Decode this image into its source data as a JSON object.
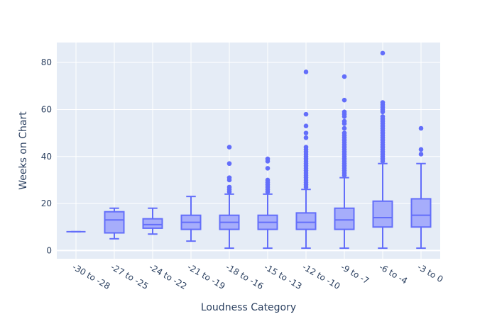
{
  "chart_data": {
    "type": "box",
    "title": "",
    "xlabel": "Loudness Category",
    "ylabel": "Weeks on Chart",
    "ylim": [
      -3.5,
      88.5
    ],
    "yticks": [
      0,
      20,
      40,
      60,
      80
    ],
    "grid": true,
    "legend": "none",
    "colors": {
      "plot_bg": "#e5ecf6",
      "grid": "#ffffff",
      "box_line": "#636efa",
      "box_fill": "#a6adfb",
      "text": "#2a3f5f"
    },
    "categories": [
      "-30 to -28",
      "-27 to -25",
      "-24 to -22",
      "-21 to -19",
      "-18 to -16",
      "-15 to -13",
      "-12 to -10",
      "-9 to -7",
      "-6 to -4",
      "-3 to 0"
    ],
    "boxes": [
      {
        "min": 8,
        "q1": 8,
        "median": 8,
        "q3": 8,
        "max": 8,
        "outliers": []
      },
      {
        "min": 5,
        "q1": 7.5,
        "median": 13,
        "q3": 16.5,
        "max": 18,
        "outliers": []
      },
      {
        "min": 7,
        "q1": 9.5,
        "median": 11,
        "q3": 13.5,
        "max": 18,
        "outliers": []
      },
      {
        "min": 4,
        "q1": 9,
        "median": 12,
        "q3": 15,
        "max": 23,
        "outliers": []
      },
      {
        "min": 1,
        "q1": 9,
        "median": 12,
        "q3": 15,
        "max": 24,
        "outliers": [
          25,
          26,
          27,
          30,
          31,
          37,
          44
        ]
      },
      {
        "min": 1,
        "q1": 9,
        "median": 12,
        "q3": 15,
        "max": 24,
        "outliers": [
          25,
          26,
          27,
          28,
          29,
          30,
          35,
          38,
          39
        ]
      },
      {
        "min": 1,
        "q1": 9,
        "median": 12,
        "q3": 16,
        "max": 26,
        "outliers": [
          27,
          28,
          29,
          30,
          31,
          32,
          33,
          34,
          35,
          36,
          37,
          38,
          39,
          40,
          41,
          42,
          43,
          44,
          48,
          50,
          53,
          58,
          76
        ]
      },
      {
        "min": 1,
        "q1": 9,
        "median": 13,
        "q3": 18,
        "max": 31,
        "outliers": [
          32,
          33,
          34,
          35,
          36,
          37,
          38,
          39,
          40,
          41,
          42,
          43,
          44,
          45,
          46,
          47,
          48,
          49,
          50,
          52,
          54,
          55,
          57,
          58,
          59,
          64,
          74
        ]
      },
      {
        "min": 1,
        "q1": 10,
        "median": 14,
        "q3": 21,
        "max": 37,
        "outliers": [
          38,
          39,
          40,
          41,
          42,
          43,
          44,
          45,
          46,
          47,
          48,
          49,
          50,
          51,
          52,
          53,
          54,
          55,
          56,
          57,
          59,
          60,
          61,
          62,
          63,
          84
        ]
      },
      {
        "min": 1,
        "q1": 10,
        "median": 15,
        "q3": 22,
        "max": 37,
        "outliers": [
          41,
          43,
          52
        ]
      }
    ]
  }
}
